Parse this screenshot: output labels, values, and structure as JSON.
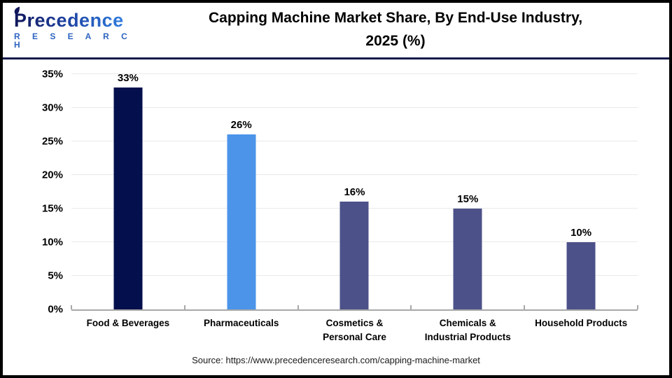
{
  "header": {
    "logo_word": "Precedence",
    "logo_sub": "R E S E A R C H",
    "title_line1": "Capping Machine Market Share, By End-Use Industry,",
    "title_line2": "2025 (%)"
  },
  "chart_data": {
    "type": "bar",
    "title": "Capping Machine Market Share, By End-Use Industry, 2025 (%)",
    "categories": [
      "Food & Beverages",
      "Pharmaceuticals",
      "Cosmetics & Personal Care",
      "Chemicals & Industrial Products",
      "Household Products"
    ],
    "values": [
      33,
      26,
      16,
      15,
      10
    ],
    "value_labels": [
      "33%",
      "26%",
      "16%",
      "15%",
      "10%"
    ],
    "bar_colors": [
      "#04104d",
      "#4b94ea",
      "#4c5189",
      "#4c5189",
      "#4c5189"
    ],
    "xlabel": "",
    "ylabel": "",
    "ylim": [
      0,
      35
    ],
    "ytick_step": 5,
    "ytick_labels": [
      "0%",
      "5%",
      "10%",
      "15%",
      "20%",
      "25%",
      "30%",
      "35%"
    ],
    "grid": true,
    "legend": "none",
    "colors": {
      "grid": "#e9e9e9",
      "axis": "#a8a8a8",
      "divider": "#141b4d",
      "logo_navy": "#10165a",
      "logo_blue": "#2f7de0"
    }
  },
  "footer": {
    "source": "Source: https://www.precedenceresearch.com/capping-machine-market"
  }
}
